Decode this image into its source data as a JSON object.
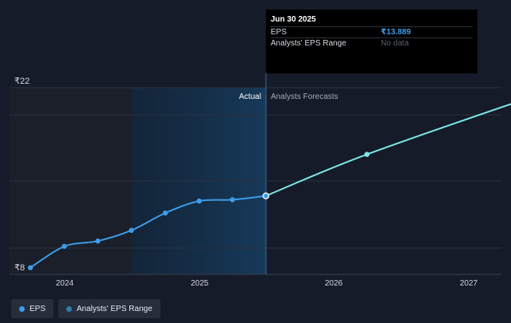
{
  "chart_data": {
    "type": "line",
    "y_unit": "₹",
    "y_tick_labels": [
      "₹22",
      "₹8"
    ],
    "ylim": [
      8,
      22
    ],
    "x_tick_labels": [
      "2024",
      "2025",
      "2026",
      "2027"
    ],
    "section_labels": {
      "actual": "Actual",
      "forecast": "Analysts Forecasts"
    },
    "series": [
      {
        "name": "EPS",
        "kind": "actual",
        "color": "#3e9ce8",
        "points": [
          [
            "2023-09-30",
            8.5
          ],
          [
            "2023-12-31",
            10.1
          ],
          [
            "2024-03-31",
            10.5
          ],
          [
            "2024-06-30",
            11.3
          ],
          [
            "2024-09-30",
            12.6
          ],
          [
            "2024-12-31",
            13.5
          ],
          [
            "2025-03-31",
            13.6
          ],
          [
            "2025-06-30",
            13.889
          ]
        ]
      },
      {
        "name": "EPS forecast",
        "kind": "forecast",
        "color": "#7de8e8",
        "points": [
          [
            "2025-06-30",
            13.889
          ],
          [
            "2026-03-31",
            17.0
          ],
          [
            "2027-06-30",
            21.4
          ]
        ],
        "markers": [
          [
            "2026-03-31",
            17.0
          ],
          [
            "2027-06-30",
            21.4
          ]
        ]
      }
    ],
    "highlight_point": [
      "2025-06-30",
      13.889
    ],
    "grid": true,
    "legend_position": "bottom-left"
  },
  "tooltip": {
    "title": "Jun 30 2025",
    "rows": [
      {
        "label": "EPS",
        "value": "₹13.889"
      },
      {
        "label": "Analysts' EPS Range",
        "value": "No data"
      }
    ]
  },
  "legend": {
    "items": [
      {
        "label": "EPS",
        "color": "#3e9ce8"
      },
      {
        "label": "Analysts' EPS Range",
        "color": "#2f7fa8"
      }
    ]
  }
}
